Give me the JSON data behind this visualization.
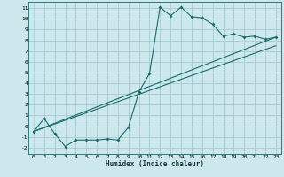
{
  "xlabel": "Humidex (Indice chaleur)",
  "ylabel": "",
  "bg_color": "#cce8ec",
  "grid_color": "#aacfd4",
  "line_color": "#1a6b6b",
  "xlim": [
    -0.5,
    23.5
  ],
  "ylim": [
    -2.6,
    11.6
  ],
  "xticks": [
    0,
    1,
    2,
    3,
    4,
    5,
    6,
    7,
    8,
    9,
    10,
    11,
    12,
    13,
    14,
    15,
    16,
    17,
    18,
    19,
    20,
    21,
    22,
    23
  ],
  "yticks": [
    -2,
    -1,
    0,
    1,
    2,
    3,
    4,
    5,
    6,
    7,
    8,
    9,
    10,
    11
  ],
  "curve1_x": [
    0,
    1,
    2,
    3,
    4,
    5,
    6,
    7,
    8,
    9,
    10,
    11,
    12,
    13,
    14,
    15,
    16,
    17,
    18,
    19,
    20,
    21,
    22,
    23
  ],
  "curve1_y": [
    -0.5,
    0.7,
    -0.7,
    -1.9,
    -1.3,
    -1.3,
    -1.3,
    -1.2,
    -1.3,
    -0.1,
    3.2,
    4.9,
    11.1,
    10.3,
    11.1,
    10.2,
    10.1,
    9.5,
    8.4,
    8.6,
    8.3,
    8.4,
    8.1,
    8.3
  ],
  "curve2_x": [
    0,
    23
  ],
  "curve2_y": [
    -0.5,
    8.3
  ],
  "curve3_x": [
    0,
    23
  ],
  "curve3_y": [
    -0.5,
    7.5
  ]
}
